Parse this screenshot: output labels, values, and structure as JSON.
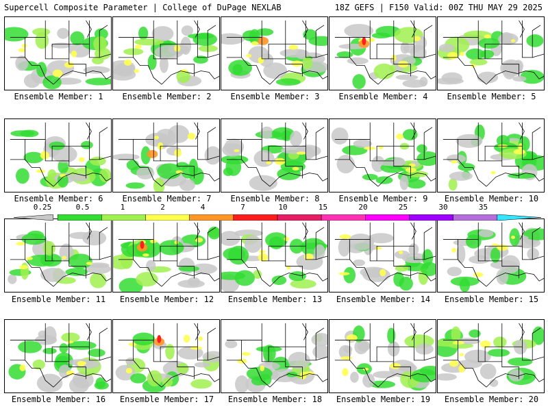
{
  "header": {
    "left": "Supercell Composite Parameter | College of DuPage NEXLAB",
    "right": "18Z GEFS | F150 Valid: 00Z THU MAY 29 2025"
  },
  "colorbar": {
    "labels": [
      "0.25",
      "0.5",
      "1",
      "2",
      "4",
      "7",
      "10",
      "15",
      "20",
      "25",
      "30",
      "35"
    ],
    "colors": [
      "#c8c8c8",
      "#32dc32",
      "#a0f050",
      "#ffff50",
      "#ff9628",
      "#ff1e1e",
      "#e61e64",
      "#ff32b4",
      "#ff00ff",
      "#a000ff",
      "#b46edc",
      "#32e6ff"
    ]
  },
  "panels": [
    {
      "label": "Ensemble Member: 1"
    },
    {
      "label": "Ensemble Member: 2"
    },
    {
      "label": "Ensemble Member: 3"
    },
    {
      "label": "Ensemble Member: 4"
    },
    {
      "label": "Ensemble Member: 5"
    },
    {
      "label": "Ensemble Member: 6"
    },
    {
      "label": "Ensemble Member: 7"
    },
    {
      "label": "Ensemble Member: 8"
    },
    {
      "label": "Ensemble Member: 9"
    },
    {
      "label": "Ensemble Member: 10"
    },
    {
      "label": "Ensemble Member: 11"
    },
    {
      "label": "Ensemble Member: 12"
    },
    {
      "label": "Ensemble Member: 13"
    },
    {
      "label": "Ensemble Member: 14"
    },
    {
      "label": "Ensemble Member: 15"
    },
    {
      "label": "Ensemble Member: 16"
    },
    {
      "label": "Ensemble Member: 17"
    },
    {
      "label": "Ensemble Member: 18"
    },
    {
      "label": "Ensemble Member: 19"
    },
    {
      "label": "Ensemble Member: 20"
    }
  ]
}
